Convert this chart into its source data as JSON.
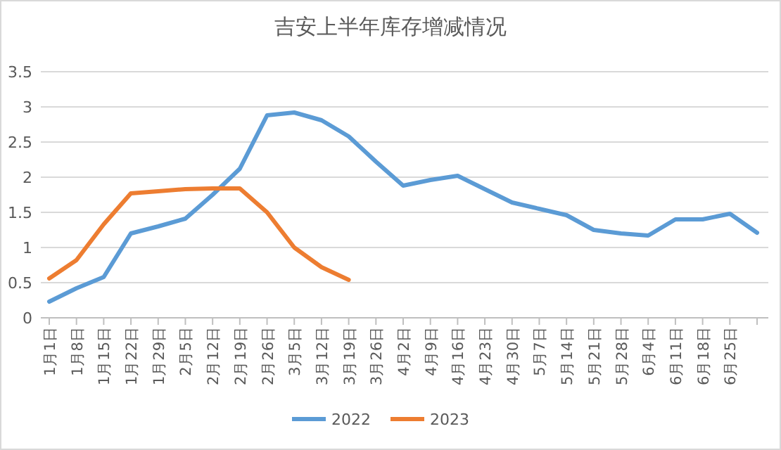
{
  "chart_data": {
    "type": "line",
    "title": "吉安上半年库存增减情况",
    "categories": [
      "1月1日",
      "1月8日",
      "1月15日",
      "1月22日",
      "1月29日",
      "2月5日",
      "2月12日",
      "2月19日",
      "2月26日",
      "3月5日",
      "3月12日",
      "3月19日",
      "3月26日",
      "4月2日",
      "4月9日",
      "4月16日",
      "4月23日",
      "4月30日",
      "5月7日",
      "5月14日",
      "5月21日",
      "5月28日",
      "6月4日",
      "6月11日",
      "6月18日",
      "6月25日",
      null
    ],
    "series": [
      {
        "name": "2022",
        "color": "#5b9bd5",
        "values": [
          0.23,
          0.42,
          0.58,
          1.2,
          1.3,
          1.41,
          1.75,
          2.12,
          2.88,
          2.92,
          2.81,
          2.58,
          2.22,
          1.88,
          1.96,
          2.02,
          1.83,
          1.64,
          1.55,
          1.46,
          1.25,
          1.2,
          1.17,
          1.4,
          1.4,
          1.48,
          1.21
        ]
      },
      {
        "name": "2023",
        "color": "#ed7d31",
        "values": [
          0.56,
          0.82,
          1.33,
          1.77,
          1.8,
          1.83,
          1.84,
          1.84,
          1.5,
          1.0,
          0.72,
          0.54,
          null,
          null,
          null,
          null,
          null,
          null,
          null,
          null,
          null,
          null,
          null,
          null,
          null,
          null,
          null
        ]
      }
    ],
    "ylim": [
      0,
      3.5
    ],
    "yticks": [
      0,
      0.5,
      1,
      1.5,
      2,
      2.5,
      3,
      3.5
    ],
    "grid": "y",
    "legend": "bottom"
  }
}
